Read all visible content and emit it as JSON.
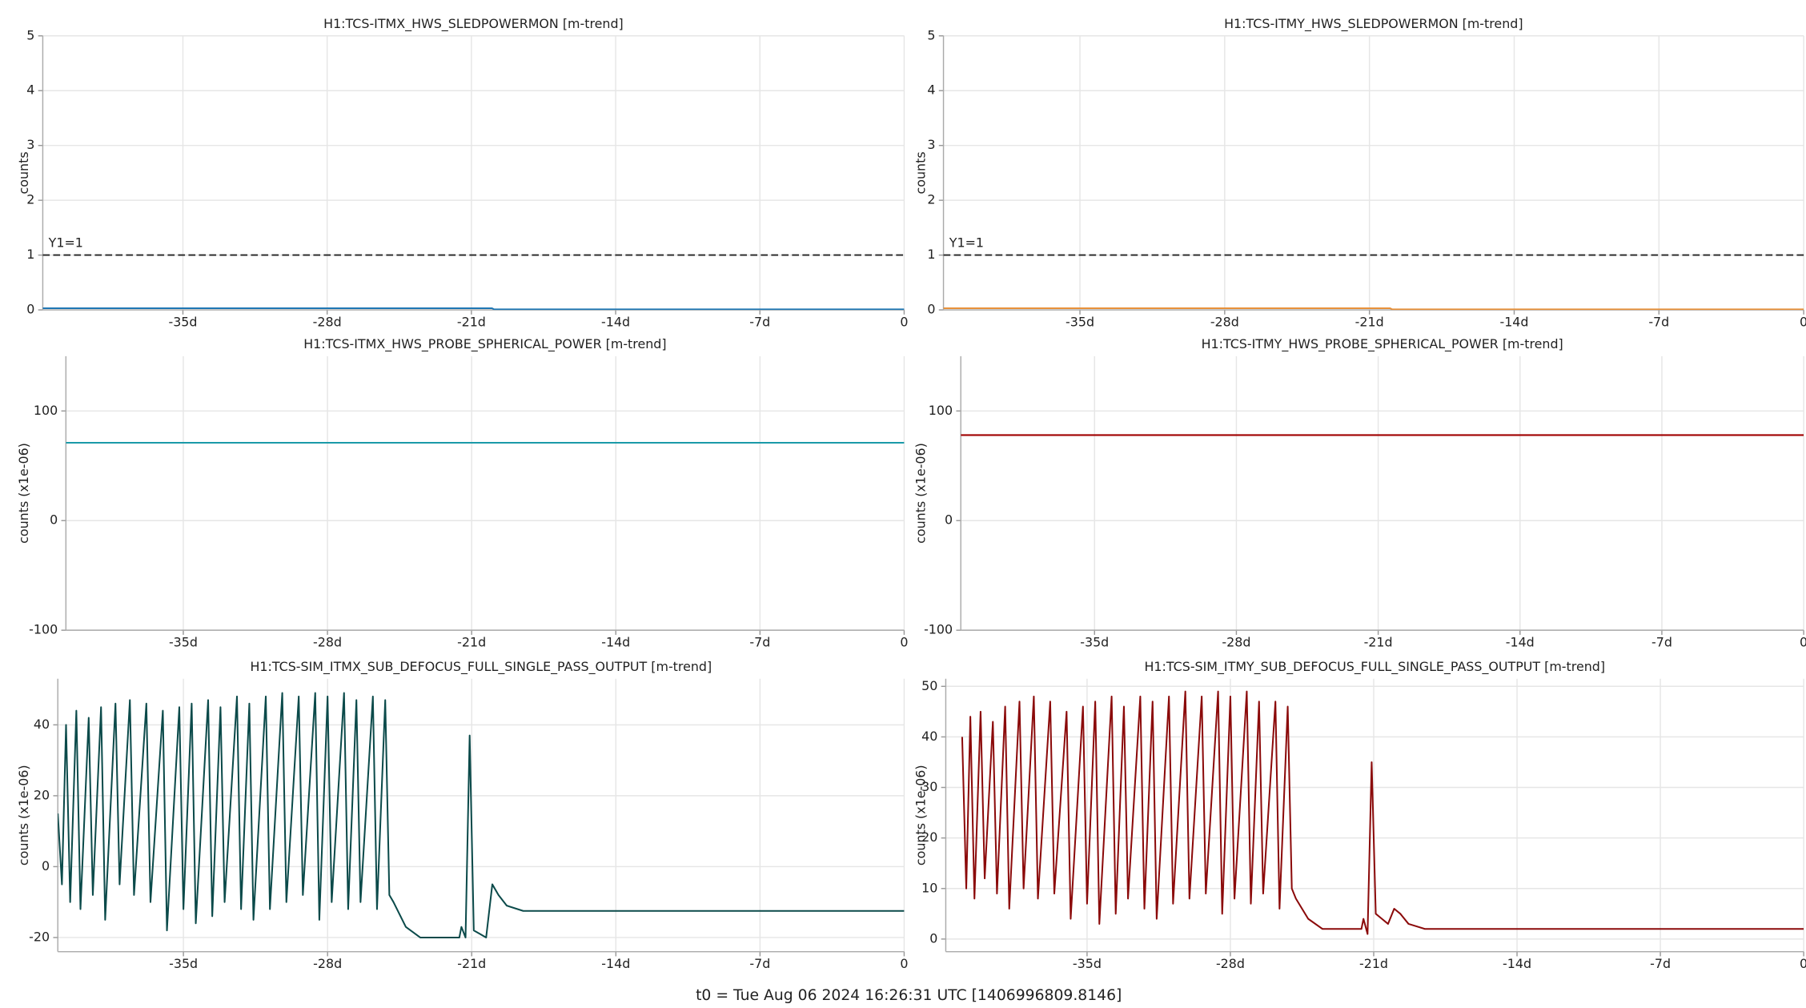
{
  "chart_data": [
    {
      "type": "line",
      "title": "H1:TCS-ITMX_HWS_SLEDPOWERMON [m-trend]",
      "ylabel": "counts",
      "x": [
        -41.8,
        -20,
        -19.9,
        0
      ],
      "values": [
        0.03,
        0.03,
        0.01,
        0.01
      ],
      "color": "#1f77b4",
      "xlim": [
        -41.8,
        0
      ],
      "xticks": [
        {
          "value": -35,
          "label": "-35d"
        },
        {
          "value": -28,
          "label": "-28d"
        },
        {
          "value": -21,
          "label": "-21d"
        },
        {
          "value": -14,
          "label": "-14d"
        },
        {
          "value": -7,
          "label": "-7d"
        },
        0
      ],
      "ylim": [
        0,
        5
      ],
      "yticks": [
        0,
        1,
        2,
        3,
        4,
        5
      ],
      "grid": true,
      "hline": {
        "value": 1,
        "label": "Y1=1"
      }
    },
    {
      "type": "line",
      "title": "H1:TCS-ITMY_HWS_SLEDPOWERMON [m-trend]",
      "ylabel": "counts",
      "x": [
        -41.6,
        -20,
        -19.9,
        0
      ],
      "values": [
        0.03,
        0.03,
        0.01,
        0.01
      ],
      "color": "#e8913a",
      "xlim": [
        -41.6,
        0
      ],
      "xticks": [
        {
          "value": -35,
          "label": "-35d"
        },
        {
          "value": -28,
          "label": "-28d"
        },
        {
          "value": -21,
          "label": "-21d"
        },
        {
          "value": -14,
          "label": "-14d"
        },
        {
          "value": -7,
          "label": "-7d"
        },
        0
      ],
      "ylim": [
        0,
        5
      ],
      "yticks": [
        0,
        1,
        2,
        3,
        4,
        5
      ],
      "grid": true,
      "hline": {
        "value": 1,
        "label": "Y1=1"
      }
    },
    {
      "type": "line",
      "title": "H1:TCS-ITMX_HWS_PROBE_SPHERICAL_POWER [m-trend]",
      "ylabel": "counts (x1e-06)",
      "x": [
        -40.7,
        0
      ],
      "values": [
        71,
        71
      ],
      "color": "#1a9aa8",
      "xlim": [
        -40.7,
        0
      ],
      "xticks": [
        {
          "value": -35,
          "label": "-35d"
        },
        {
          "value": -28,
          "label": "-28d"
        },
        {
          "value": -21,
          "label": "-21d"
        },
        {
          "value": -14,
          "label": "-14d"
        },
        {
          "value": -7,
          "label": "-7d"
        },
        0
      ],
      "ylim": [
        -100,
        150
      ],
      "yticks": [
        -100,
        0,
        100
      ],
      "grid": true
    },
    {
      "type": "line",
      "title": "H1:TCS-ITMY_HWS_PROBE_SPHERICAL_POWER [m-trend]",
      "ylabel": "counts (x1e-06)",
      "x": [
        -41.6,
        0
      ],
      "values": [
        78,
        78
      ],
      "color": "#a00000",
      "xlim": [
        -41.6,
        0
      ],
      "xticks": [
        {
          "value": -35,
          "label": "-35d"
        },
        {
          "value": -28,
          "label": "-28d"
        },
        {
          "value": -21,
          "label": "-21d"
        },
        {
          "value": -14,
          "label": "-14d"
        },
        {
          "value": -7,
          "label": "-7d"
        },
        0
      ],
      "ylim": [
        -100,
        150
      ],
      "yticks": [
        -100,
        0,
        100
      ],
      "grid": true
    },
    {
      "type": "line",
      "title": "H1:TCS-SIM_ITMX_SUB_DEFOCUS_FULL_SINGLE_PASS_OUTPUT [m-trend]",
      "ylabel": "counts (x1e-06)",
      "x": [
        -41.1,
        -40.9,
        -40.7,
        -40.5,
        -40.2,
        -40.0,
        -39.6,
        -39.4,
        -39.0,
        -38.8,
        -38.3,
        -38.1,
        -37.6,
        -37.4,
        -36.8,
        -36.6,
        -36.0,
        -35.8,
        -35.2,
        -35.0,
        -34.6,
        -34.4,
        -33.8,
        -33.6,
        -33.2,
        -33.0,
        -32.4,
        -32.2,
        -31.8,
        -31.6,
        -31.0,
        -30.8,
        -30.2,
        -30.0,
        -29.4,
        -29.2,
        -28.6,
        -28.4,
        -28.0,
        -27.8,
        -27.2,
        -27.0,
        -26.6,
        -26.4,
        -25.8,
        -25.6,
        -25.2,
        -25.0,
        -24.8,
        -24.2,
        -23.5,
        -22.5,
        -21.6,
        -21.5,
        -21.3,
        -21.1,
        -20.9,
        -20.6,
        -20.3,
        -20.0,
        -19.7,
        -19.3,
        -18.5,
        -17,
        -10,
        0
      ],
      "values": [
        15,
        -5,
        40,
        -10,
        44,
        -12,
        42,
        -8,
        45,
        -15,
        46,
        -5,
        47,
        -8,
        46,
        -10,
        44,
        -18,
        45,
        -12,
        46,
        -16,
        47,
        -14,
        45,
        -10,
        48,
        -12,
        46,
        -15,
        48,
        -12,
        49,
        -10,
        48,
        -8,
        49,
        -15,
        48,
        -10,
        49,
        -12,
        47,
        -10,
        48,
        -12,
        47,
        -8,
        -10,
        -17,
        -20,
        -20,
        -20,
        -17,
        -20,
        37,
        -18,
        -19,
        -20,
        -5,
        -8,
        -11,
        -12.5,
        -12.5,
        -12.5,
        -12.5
      ],
      "color": "#0b4a4a",
      "xlim": [
        -41.1,
        0
      ],
      "xticks": [
        {
          "value": -35,
          "label": "-35d"
        },
        {
          "value": -28,
          "label": "-28d"
        },
        {
          "value": -21,
          "label": "-21d"
        },
        {
          "value": -14,
          "label": "-14d"
        },
        {
          "value": -7,
          "label": "-7d"
        },
        0
      ],
      "ylim": [
        -24,
        53
      ],
      "yticks": [
        -20,
        0,
        20,
        40
      ],
      "grid": true
    },
    {
      "type": "line",
      "title": "H1:TCS-SIM_ITMY_SUB_DEFOCUS_FULL_SINGLE_PASS_OUTPUT [m-trend]",
      "ylabel": "counts (x1e-06)",
      "x": [
        -41.1,
        -40.9,
        -40.7,
        -40.5,
        -40.2,
        -40.0,
        -39.6,
        -39.4,
        -39.0,
        -38.8,
        -38.3,
        -38.1,
        -37.6,
        -37.4,
        -36.8,
        -36.6,
        -36.0,
        -35.8,
        -35.2,
        -35.0,
        -34.6,
        -34.4,
        -33.8,
        -33.6,
        -33.2,
        -33.0,
        -32.4,
        -32.2,
        -31.8,
        -31.6,
        -31.0,
        -30.8,
        -30.2,
        -30.0,
        -29.4,
        -29.2,
        -28.6,
        -28.4,
        -28.0,
        -27.8,
        -27.2,
        -27.0,
        -26.6,
        -26.4,
        -25.8,
        -25.6,
        -25.2,
        -25.0,
        -24.8,
        -24.2,
        -23.5,
        -22.5,
        -21.6,
        -21.5,
        -21.3,
        -21.1,
        -20.9,
        -20.6,
        -20.3,
        -20.0,
        -19.7,
        -19.3,
        -18.5,
        -17,
        -10,
        0
      ],
      "values": [
        40,
        10,
        44,
        8,
        45,
        12,
        43,
        9,
        46,
        6,
        47,
        10,
        48,
        8,
        47,
        9,
        45,
        4,
        46,
        7,
        47,
        3,
        48,
        5,
        46,
        8,
        48,
        6,
        47,
        4,
        48,
        7,
        49,
        8,
        48,
        9,
        49,
        5,
        48,
        8,
        49,
        7,
        47,
        9,
        47,
        6,
        46,
        10,
        8,
        4,
        2,
        2,
        2,
        4,
        1,
        35,
        5,
        4,
        3,
        6,
        5,
        3,
        2,
        2,
        2,
        2
      ],
      "color": "#8b0a0a",
      "xlim": [
        -41.9,
        0
      ],
      "xticks": [
        {
          "value": -35,
          "label": "-35d"
        },
        {
          "value": -28,
          "label": "-28d"
        },
        {
          "value": -21,
          "label": "-21d"
        },
        {
          "value": -14,
          "label": "-14d"
        },
        {
          "value": -7,
          "label": "-7d"
        },
        0
      ],
      "ylim": [
        -2.5,
        51.5
      ],
      "yticks": [
        0,
        10,
        20,
        30,
        40,
        50
      ],
      "grid": true
    }
  ],
  "footer": "t0 = Tue Aug 06 2024 16:26:31 UTC [1406996809.8146]"
}
